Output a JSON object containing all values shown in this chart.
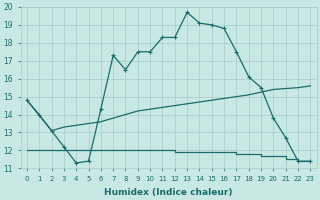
{
  "xlabel": "Humidex (Indice chaleur)",
  "x_ticks": [
    0,
    1,
    2,
    3,
    4,
    5,
    6,
    7,
    8,
    9,
    10,
    11,
    12,
    13,
    14,
    15,
    16,
    17,
    18,
    19,
    20,
    21,
    22,
    23
  ],
  "ylim": [
    11,
    20
  ],
  "yticks": [
    11,
    12,
    13,
    14,
    15,
    16,
    17,
    18,
    19,
    20
  ],
  "bg_color": "#c8e8e4",
  "grid_color": "#a8cccc",
  "line_color": "#1a6b6b",
  "line1_x": [
    0,
    1,
    2,
    3,
    4,
    5,
    6,
    7,
    8,
    9,
    10,
    11,
    12,
    13,
    14,
    15,
    16,
    17,
    18,
    19,
    20,
    21,
    22,
    23
  ],
  "line1_y": [
    14.8,
    14.0,
    13.1,
    12.2,
    11.3,
    11.4,
    14.3,
    17.3,
    16.5,
    17.5,
    17.5,
    18.3,
    18.3,
    19.7,
    19.1,
    19.0,
    18.8,
    17.5,
    16.1,
    15.5,
    13.8,
    12.7,
    11.4,
    11.4
  ],
  "line2_x": [
    0,
    2,
    3,
    4,
    5,
    6,
    7,
    8,
    9,
    10,
    11,
    12,
    13,
    14,
    15,
    16,
    17,
    18,
    20,
    22,
    23
  ],
  "line2_y": [
    14.8,
    13.1,
    13.3,
    13.4,
    13.5,
    13.6,
    13.8,
    14.0,
    14.2,
    14.3,
    14.4,
    14.5,
    14.6,
    14.7,
    14.8,
    14.9,
    15.0,
    15.1,
    15.4,
    15.5,
    15.6
  ],
  "line3_x": [
    0,
    1,
    2,
    3,
    4,
    5,
    6,
    7,
    8,
    9,
    10,
    11,
    12,
    13,
    14,
    15,
    16,
    17,
    18,
    19,
    20,
    21,
    22,
    23
  ],
  "line3_y": [
    12.0,
    12.0,
    12.0,
    12.0,
    12.0,
    12.0,
    12.0,
    12.0,
    12.0,
    12.0,
    12.0,
    12.0,
    11.9,
    11.9,
    11.9,
    11.9,
    11.9,
    11.8,
    11.8,
    11.7,
    11.7,
    11.5,
    11.4,
    11.4
  ]
}
